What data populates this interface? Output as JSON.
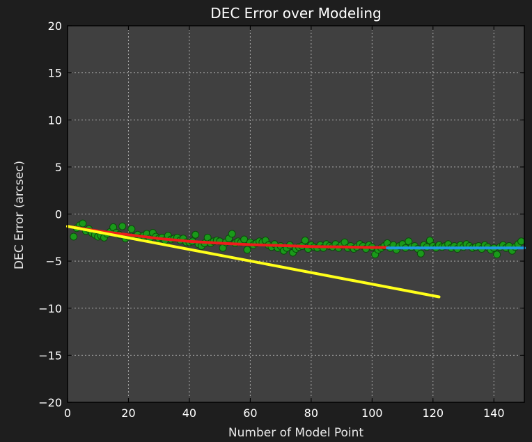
{
  "chart_data": {
    "type": "scatter",
    "title": "DEC Error over Modeling",
    "xlabel": "Number of Model Point",
    "ylabel": "DEC Error (arcsec)",
    "xlim": [
      0,
      150
    ],
    "ylim": [
      -20,
      20
    ],
    "xticks": [
      0,
      20,
      40,
      60,
      80,
      100,
      120,
      140
    ],
    "yticks": [
      -20,
      -15,
      -10,
      -5,
      0,
      5,
      10,
      15,
      20
    ],
    "grid": true,
    "colors": {
      "background": "#1e1e1e",
      "plot_area": "#404040",
      "points_fill": "#1a9a1a",
      "points_edge": "#0c4a0c",
      "red_line": "#ee1c1c",
      "yellow_line": "#ffff1a",
      "blue_line": "#1e9be0"
    },
    "series": [
      {
        "kind": "scatter",
        "color": "#1a9a1a",
        "x": [
          2,
          3,
          4,
          5,
          6,
          7,
          8,
          9,
          10,
          11,
          12,
          13,
          14,
          15,
          16,
          17,
          18,
          19,
          20,
          21,
          22,
          23,
          24,
          25,
          26,
          27,
          28,
          29,
          30,
          31,
          32,
          33,
          34,
          35,
          36,
          37,
          38,
          39,
          40,
          41,
          42,
          43,
          44,
          45,
          46,
          47,
          48,
          49,
          50,
          51,
          52,
          53,
          54,
          55,
          56,
          57,
          58,
          59,
          60,
          61,
          62,
          63,
          64,
          65,
          66,
          67,
          68,
          69,
          70,
          71,
          72,
          73,
          74,
          75,
          76,
          77,
          78,
          79,
          80,
          81,
          82,
          83,
          84,
          85,
          86,
          87,
          88,
          89,
          90,
          91,
          92,
          93,
          94,
          95,
          96,
          97,
          98,
          99,
          100,
          101,
          102,
          103,
          104,
          105,
          106,
          107,
          108,
          109,
          110,
          111,
          112,
          113,
          114,
          115,
          116,
          117,
          118,
          119,
          120,
          121,
          122,
          123,
          124,
          125,
          126,
          127,
          128,
          129,
          130,
          131,
          132,
          133,
          134,
          135,
          136,
          137,
          138,
          139,
          140,
          141,
          142,
          143,
          144,
          145,
          146,
          147,
          148,
          149
        ],
        "y": [
          -2.4,
          -1.5,
          -1.2,
          -1.0,
          -1.8,
          -1.6,
          -2.0,
          -2.2,
          -2.4,
          -2.3,
          -2.5,
          -2.1,
          -1.9,
          -1.4,
          -2.0,
          -2.2,
          -1.3,
          -2.6,
          -2.4,
          -1.6,
          -2.4,
          -2.2,
          -2.5,
          -2.3,
          -2.1,
          -2.6,
          -2.0,
          -2.4,
          -2.6,
          -2.5,
          -2.8,
          -2.3,
          -2.7,
          -2.6,
          -2.5,
          -2.8,
          -2.6,
          -3.0,
          -3.0,
          -2.9,
          -2.2,
          -3.2,
          -3.4,
          -3.1,
          -2.5,
          -3.1,
          -2.9,
          -2.8,
          -2.9,
          -3.6,
          -3.0,
          -2.6,
          -2.1,
          -3.1,
          -2.9,
          -3.0,
          -2.7,
          -3.8,
          -3.0,
          -3.3,
          -3.1,
          -2.9,
          -3.0,
          -2.8,
          -3.3,
          -3.5,
          -3.2,
          -3.6,
          -3.4,
          -3.9,
          -3.6,
          -3.3,
          -4.1,
          -3.7,
          -3.5,
          -3.4,
          -2.8,
          -3.7,
          -3.3,
          -3.5,
          -3.6,
          -3.3,
          -3.6,
          -3.2,
          -3.4,
          -3.5,
          -3.2,
          -3.6,
          -3.3,
          -3.0,
          -3.6,
          -3.4,
          -3.7,
          -3.5,
          -3.2,
          -3.4,
          -3.7,
          -3.3,
          -3.5,
          -4.3,
          -3.8,
          -3.6,
          -3.4,
          -3.1,
          -3.6,
          -3.3,
          -3.8,
          -3.4,
          -3.2,
          -3.6,
          -2.9,
          -3.5,
          -3.4,
          -3.7,
          -4.2,
          -3.3,
          -3.5,
          -2.8,
          -3.4,
          -3.6,
          -3.3,
          -3.5,
          -3.4,
          -3.2,
          -3.6,
          -3.4,
          -3.7,
          -3.3,
          -3.5,
          -3.2,
          -3.4,
          -3.6,
          -3.5,
          -3.4,
          -3.7,
          -3.3,
          -3.5,
          -3.8,
          -3.6,
          -4.3,
          -3.5,
          -3.3,
          -3.6,
          -3.4,
          -3.9,
          -3.5,
          -3.2,
          -2.9
        ]
      },
      {
        "kind": "line",
        "color": "#ee1c1c",
        "x": [
          0,
          10,
          20,
          30,
          40,
          50,
          60,
          70,
          80,
          90,
          100,
          105
        ],
        "y": [
          -1.3,
          -1.8,
          -2.2,
          -2.6,
          -2.9,
          -3.1,
          -3.25,
          -3.35,
          -3.45,
          -3.5,
          -3.55,
          -3.55
        ]
      },
      {
        "kind": "line",
        "color": "#ffff1a",
        "x": [
          0,
          122
        ],
        "y": [
          -1.3,
          -8.8
        ]
      },
      {
        "kind": "line",
        "color": "#1e9be0",
        "x": [
          105,
          150
        ],
        "y": [
          -3.6,
          -3.6
        ]
      }
    ]
  }
}
